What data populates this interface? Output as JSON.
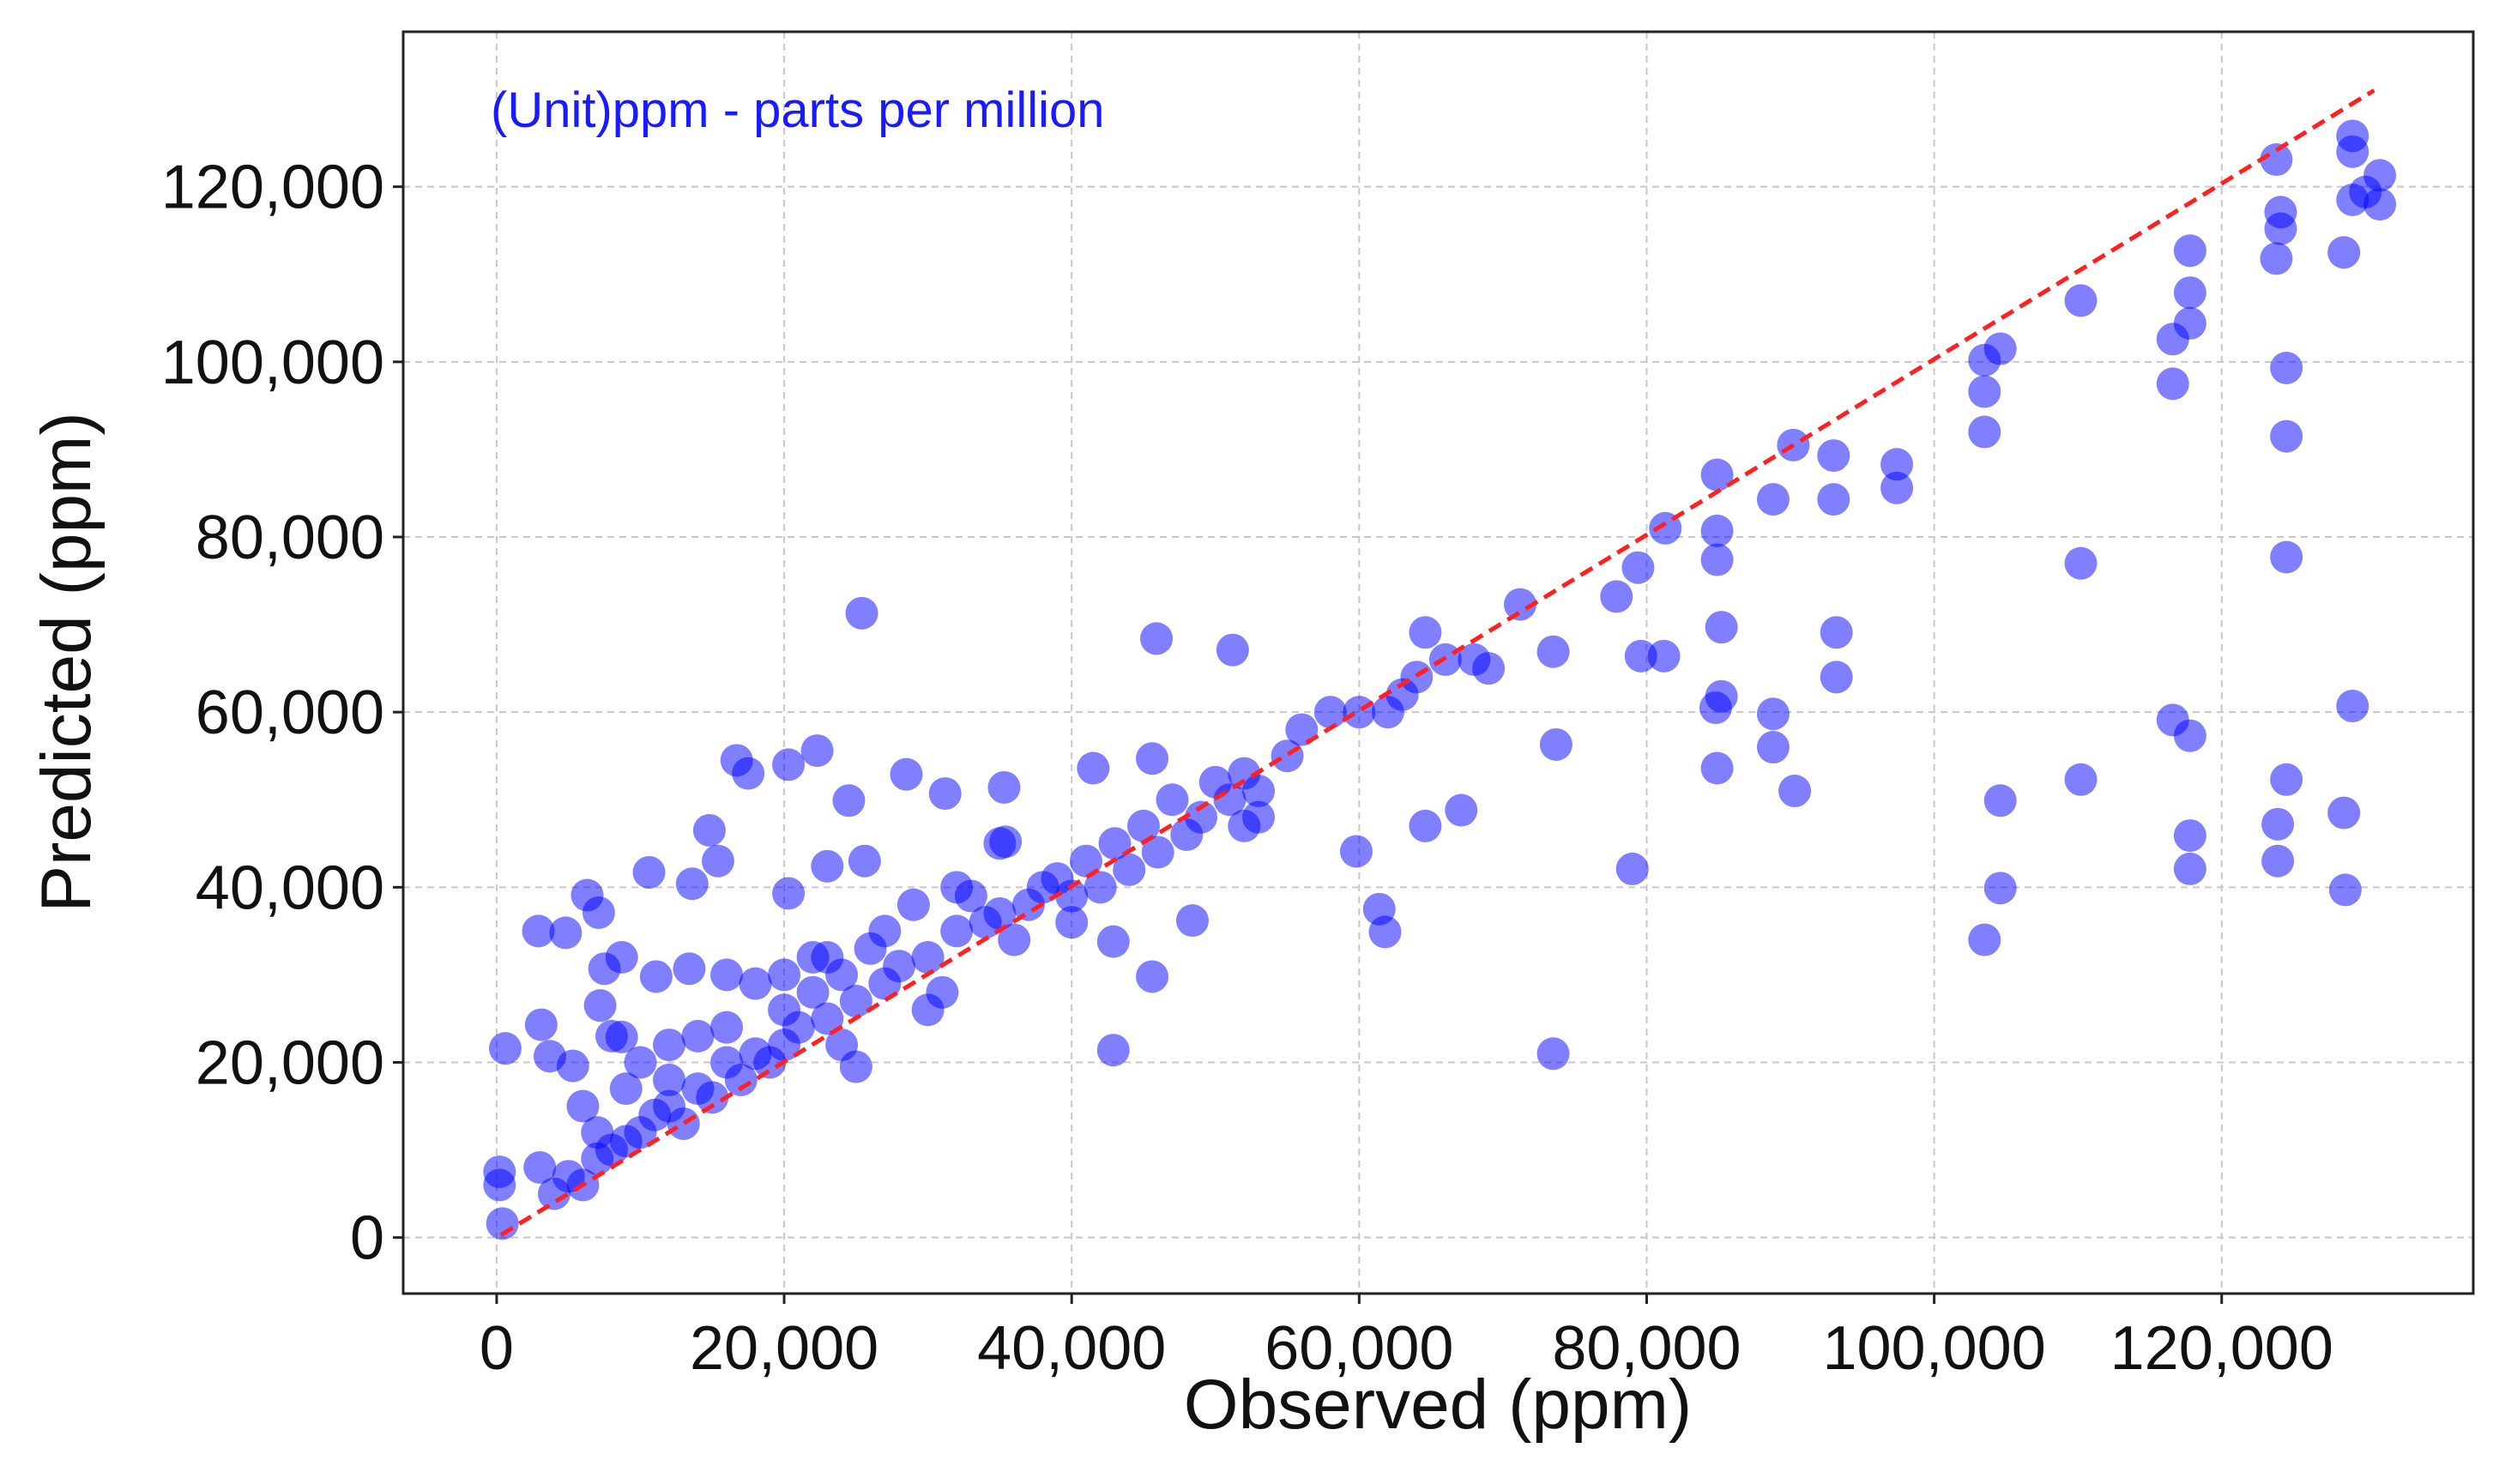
{
  "chart_data": {
    "type": "scatter",
    "xlabel": "Observed (ppm)",
    "ylabel": "Predicted (ppm)",
    "annotation": "(Unit)ppm - parts per million",
    "annotation_color": "#1a1aff",
    "grid": true,
    "xlim": [
      -6500,
      137500
    ],
    "ylim": [
      -6400,
      137700
    ],
    "xticks": [
      0,
      {
        "value": 20000,
        "label": "20,000"
      },
      {
        "value": 40000,
        "label": "40,000"
      },
      {
        "value": 60000,
        "label": "60,000"
      },
      {
        "value": 80000,
        "label": "80,000"
      },
      {
        "value": 100000,
        "label": "100,000"
      },
      {
        "value": 120000,
        "label": "120,000"
      }
    ],
    "yticks": [
      0,
      {
        "value": 20000,
        "label": "20,000"
      },
      {
        "value": 40000,
        "label": "40,000"
      },
      {
        "value": 60000,
        "label": "60,000"
      },
      {
        "value": 80000,
        "label": "80,000"
      },
      {
        "value": 100000,
        "label": "100,000"
      },
      {
        "value": 120000,
        "label": "120,000"
      }
    ],
    "reference_line": {
      "color": "#ff2020",
      "x": [
        300,
        130600
      ],
      "y": [
        300,
        131000
      ]
    },
    "series": [
      {
        "color": "#0000ff",
        "x": [
          200,
          200,
          400,
          600,
          2900,
          3100,
          3700,
          4800,
          5300,
          6300,
          7100,
          7200,
          7500,
          8700,
          8700,
          10600,
          11100,
          13400,
          13600,
          14800,
          15400,
          16700,
          17500,
          20300,
          20300,
          22300,
          23000,
          24500,
          25400,
          25600,
          28500,
          31200,
          35300,
          35400,
          41500,
          42900,
          42900,
          45600,
          45900,
          45600,
          48400,
          51200,
          59800,
          61400,
          61800,
          64600,
          67100,
          64600,
          71200,
          73500,
          73700,
          73500,
          79000,
          77900,
          79400,
          79600,
          81300,
          81200,
          84900,
          84900,
          84900,
          85200,
          85200,
          84800,
          84900,
          88800,
          88800,
          88800,
          90200,
          90300,
          93000,
          93200,
          93200,
          93000,
          97400,
          97400,
          103500,
          103500,
          103500,
          104600,
          104600,
          104600,
          103500,
          110200,
          110200,
          110200,
          116600,
          116600,
          116600,
          117800,
          117800,
          117800,
          117800,
          117800,
          117800,
          123800,
          123800,
          124100,
          124100,
          124500,
          124500,
          124500,
          124500,
          123900,
          123900,
          128500,
          128500,
          128600,
          129100,
          129100,
          129100,
          129100,
          131000,
          131000,
          130000,
          4000,
          5000,
          6000,
          7000,
          8000,
          9000,
          10000,
          11000,
          12000,
          12000,
          13000,
          14000,
          15000,
          16000,
          16000,
          17000,
          18000,
          19000,
          20000,
          20000,
          21000,
          22000,
          23000,
          24000,
          24000,
          25000,
          25000,
          26000,
          27000,
          28000,
          29000,
          30000,
          31000,
          32000,
          33000,
          34000,
          35000,
          35000,
          36000,
          37000,
          38000,
          39000,
          40000,
          41000,
          42000,
          43000,
          44000,
          45000,
          46000,
          47000,
          48000,
          49000,
          50000,
          51000,
          52000,
          53000,
          53000,
          55000,
          56000,
          58000,
          60000,
          62000,
          63000,
          64000,
          66000,
          68000,
          69000,
          10000,
          8000,
          14000,
          18000,
          22000,
          6000,
          9000,
          12000,
          27000,
          30000,
          40000,
          7000,
          3000,
          16000,
          20000,
          32000,
          23000,
          52000
        ],
        "values": [
          7500,
          6000,
          1600,
          21600,
          35000,
          24300,
          20700,
          34800,
          19600,
          39100,
          37100,
          26500,
          30700,
          32000,
          22900,
          41700,
          29800,
          30700,
          40400,
          46500,
          43000,
          54500,
          53000,
          39300,
          54000,
          55600,
          42400,
          49900,
          71300,
          43000,
          52900,
          50700,
          51400,
          45200,
          53600,
          33800,
          21400,
          54700,
          68400,
          29800,
          36200,
          67100,
          44100,
          37500,
          34900,
          47000,
          48800,
          69100,
          72300,
          66900,
          56300,
          21000,
          42100,
          73200,
          76500,
          66400,
          81000,
          66400,
          87100,
          77400,
          80700,
          69700,
          61800,
          60500,
          53600,
          59800,
          56000,
          84300,
          90500,
          51000,
          84300,
          69100,
          64000,
          89300,
          88300,
          85600,
          92000,
          96600,
          100200,
          101500,
          49900,
          39900,
          34000,
          107000,
          77000,
          52300,
          102600,
          97500,
          59100,
          112700,
          107900,
          104400,
          57300,
          45900,
          42100,
          123100,
          111800,
          117100,
          115200,
          99300,
          91500,
          77700,
          52300,
          47200,
          43000,
          112500,
          48500,
          39700,
          60700,
          125800,
          124000,
          118500,
          121300,
          118000,
          119400,
          5000,
          7000,
          6000,
          9000,
          10000,
          11000,
          12000,
          14000,
          15000,
          18000,
          13000,
          17000,
          16000,
          20000,
          24000,
          18000,
          21000,
          20000,
          22000,
          26000,
          24000,
          28000,
          25000,
          30000,
          22000,
          27000,
          19500,
          33000,
          29000,
          31000,
          38000,
          32000,
          28000,
          35000,
          39000,
          36000,
          37000,
          45000,
          34000,
          38000,
          40000,
          41000,
          39000,
          43000,
          40000,
          45000,
          42000,
          47000,
          44000,
          50000,
          46000,
          48000,
          52000,
          50000,
          53000,
          48000,
          51000,
          55000,
          58000,
          60000,
          60000,
          60000,
          62000,
          64000,
          66000,
          66000,
          65000,
          20000,
          23000,
          23000,
          29000,
          32000,
          15000,
          17000,
          22000,
          35000,
          26000,
          36000,
          12000,
          8000,
          30000,
          30000,
          40000,
          32000,
          47000
        ]
      }
    ]
  }
}
